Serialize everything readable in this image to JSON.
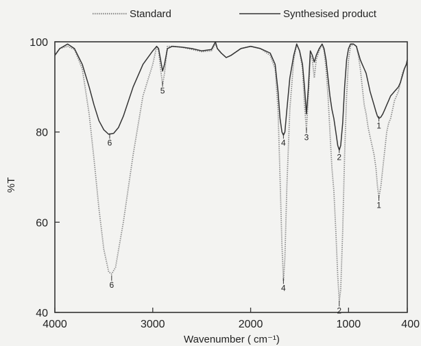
{
  "chart_data": {
    "type": "line",
    "xlabel": "Wavenumber ( cm⁻¹)",
    "ylabel": "%T",
    "xlim": [
      4000,
      400
    ],
    "ylim": [
      40,
      100
    ],
    "xticks": [
      "4000",
      "3000",
      "2000",
      "1000",
      "400"
    ],
    "xtick_values": [
      4000,
      3000,
      2000,
      1000,
      400
    ],
    "yticks": [
      "40",
      "60",
      "80",
      "100"
    ],
    "ytick_values": [
      40,
      60,
      80,
      100
    ],
    "grid": false,
    "legend": "top",
    "series": [
      {
        "name": "Standard",
        "color": "#8c8c8c",
        "style": "dotted",
        "points": [
          [
            4000,
            97
          ],
          [
            3950,
            98.5
          ],
          [
            3870,
            99
          ],
          [
            3800,
            98.3
          ],
          [
            3720,
            94
          ],
          [
            3650,
            84
          ],
          [
            3600,
            74
          ],
          [
            3550,
            63
          ],
          [
            3500,
            54
          ],
          [
            3450,
            49
          ],
          [
            3420,
            48.5
          ],
          [
            3380,
            50
          ],
          [
            3300,
            60
          ],
          [
            3200,
            75
          ],
          [
            3100,
            88
          ],
          [
            3000,
            95
          ],
          [
            2960,
            99
          ],
          [
            2940,
            98
          ],
          [
            2920,
            94
          ],
          [
            2900,
            90.5
          ],
          [
            2880,
            93
          ],
          [
            2850,
            99
          ],
          [
            2800,
            99
          ],
          [
            2700,
            98.8
          ],
          [
            2600,
            98.3
          ],
          [
            2500,
            97.8
          ],
          [
            2400,
            98
          ],
          [
            2360,
            99.5
          ],
          [
            2340,
            98.5
          ],
          [
            2300,
            97.5
          ],
          [
            2250,
            96.5
          ],
          [
            2200,
            97
          ],
          [
            2100,
            98.5
          ],
          [
            2000,
            99
          ],
          [
            1900,
            98.5
          ],
          [
            1800,
            97
          ],
          [
            1750,
            94
          ],
          [
            1720,
            85
          ],
          [
            1700,
            70
          ],
          [
            1680,
            55
          ],
          [
            1665,
            47
          ],
          [
            1650,
            52
          ],
          [
            1630,
            68
          ],
          [
            1600,
            85
          ],
          [
            1560,
            96
          ],
          [
            1530,
            99.5
          ],
          [
            1500,
            98
          ],
          [
            1470,
            94
          ],
          [
            1450,
            86
          ],
          [
            1430,
            80.5
          ],
          [
            1410,
            88
          ],
          [
            1390,
            97
          ],
          [
            1370,
            96
          ],
          [
            1350,
            92
          ],
          [
            1330,
            96
          ],
          [
            1300,
            98
          ],
          [
            1270,
            99.5
          ],
          [
            1250,
            98
          ],
          [
            1230,
            94
          ],
          [
            1210,
            88
          ],
          [
            1190,
            80
          ],
          [
            1170,
            72
          ],
          [
            1150,
            67
          ],
          [
            1130,
            58
          ],
          [
            1110,
            48
          ],
          [
            1095,
            42.5
          ],
          [
            1080,
            45
          ],
          [
            1060,
            58
          ],
          [
            1040,
            75
          ],
          [
            1020,
            88
          ],
          [
            1000,
            96
          ],
          [
            980,
            99
          ],
          [
            950,
            99.5
          ],
          [
            920,
            99
          ],
          [
            900,
            97
          ],
          [
            880,
            94
          ],
          [
            860,
            90
          ],
          [
            840,
            86
          ],
          [
            820,
            84
          ],
          [
            800,
            81
          ],
          [
            780,
            79
          ],
          [
            760,
            77
          ],
          [
            740,
            75
          ],
          [
            720,
            72
          ],
          [
            705,
            68
          ],
          [
            690,
            65.5
          ],
          [
            670,
            68
          ],
          [
            650,
            72
          ],
          [
            630,
            76
          ],
          [
            610,
            80
          ],
          [
            590,
            82
          ],
          [
            570,
            83
          ],
          [
            550,
            85
          ],
          [
            530,
            87
          ],
          [
            510,
            88
          ],
          [
            490,
            89
          ],
          [
            470,
            91
          ],
          [
            450,
            93
          ],
          [
            430,
            94
          ],
          [
            410,
            95
          ],
          [
            400,
            96
          ]
        ]
      },
      {
        "name": "Synthesised product",
        "color": "#333333",
        "style": "solid",
        "points": [
          [
            4000,
            97
          ],
          [
            3950,
            98.5
          ],
          [
            3870,
            99.5
          ],
          [
            3800,
            98.5
          ],
          [
            3720,
            95
          ],
          [
            3650,
            90
          ],
          [
            3600,
            86
          ],
          [
            3550,
            82.5
          ],
          [
            3500,
            80.5
          ],
          [
            3450,
            79.5
          ],
          [
            3400,
            79.7
          ],
          [
            3350,
            81
          ],
          [
            3300,
            83.5
          ],
          [
            3200,
            90
          ],
          [
            3100,
            95
          ],
          [
            3000,
            98
          ],
          [
            2960,
            99
          ],
          [
            2940,
            98.5
          ],
          [
            2920,
            96
          ],
          [
            2900,
            93.5
          ],
          [
            2880,
            95
          ],
          [
            2850,
            98.5
          ],
          [
            2800,
            99
          ],
          [
            2700,
            98.8
          ],
          [
            2600,
            98.5
          ],
          [
            2500,
            98
          ],
          [
            2400,
            98.3
          ],
          [
            2360,
            100
          ],
          [
            2340,
            98.5
          ],
          [
            2300,
            97.5
          ],
          [
            2250,
            96.5
          ],
          [
            2200,
            97
          ],
          [
            2100,
            98.5
          ],
          [
            2000,
            99
          ],
          [
            1900,
            98.5
          ],
          [
            1800,
            97.5
          ],
          [
            1750,
            95
          ],
          [
            1720,
            89
          ],
          [
            1700,
            83
          ],
          [
            1680,
            80
          ],
          [
            1665,
            79.3
          ],
          [
            1650,
            80
          ],
          [
            1630,
            85
          ],
          [
            1600,
            92
          ],
          [
            1560,
            97
          ],
          [
            1530,
            99.5
          ],
          [
            1500,
            98
          ],
          [
            1470,
            95
          ],
          [
            1450,
            90
          ],
          [
            1430,
            84
          ],
          [
            1410,
            90
          ],
          [
            1390,
            98
          ],
          [
            1370,
            97
          ],
          [
            1350,
            95.5
          ],
          [
            1330,
            97
          ],
          [
            1300,
            98.5
          ],
          [
            1270,
            99.5
          ],
          [
            1250,
            98.5
          ],
          [
            1230,
            96
          ],
          [
            1210,
            92
          ],
          [
            1190,
            88
          ],
          [
            1170,
            85
          ],
          [
            1150,
            83
          ],
          [
            1130,
            80
          ],
          [
            1110,
            77
          ],
          [
            1095,
            76
          ],
          [
            1080,
            77
          ],
          [
            1060,
            82
          ],
          [
            1040,
            90
          ],
          [
            1020,
            96
          ],
          [
            1000,
            98.5
          ],
          [
            980,
            99.5
          ],
          [
            950,
            99.5
          ],
          [
            920,
            99
          ],
          [
            900,
            97.5
          ],
          [
            880,
            96
          ],
          [
            860,
            95
          ],
          [
            840,
            94
          ],
          [
            820,
            93
          ],
          [
            800,
            91
          ],
          [
            780,
            89
          ],
          [
            760,
            87.5
          ],
          [
            740,
            86
          ],
          [
            720,
            84.5
          ],
          [
            705,
            83.5
          ],
          [
            690,
            83
          ],
          [
            670,
            83.3
          ],
          [
            650,
            84
          ],
          [
            630,
            85
          ],
          [
            610,
            86
          ],
          [
            590,
            87
          ],
          [
            570,
            88
          ],
          [
            550,
            88.5
          ],
          [
            530,
            89
          ],
          [
            510,
            89.5
          ],
          [
            490,
            90
          ],
          [
            470,
            91
          ],
          [
            450,
            92.5
          ],
          [
            430,
            94
          ],
          [
            410,
            95
          ],
          [
            400,
            96
          ]
        ]
      }
    ],
    "annotations": [
      {
        "text": "6",
        "x": 3440,
        "y": 77
      },
      {
        "text": "6",
        "x": 3420,
        "y": 45.5
      },
      {
        "text": "5",
        "x": 2900,
        "y": 88.5
      },
      {
        "text": "4",
        "x": 1665,
        "y": 77
      },
      {
        "text": "4",
        "x": 1665,
        "y": 44.8
      },
      {
        "text": "3",
        "x": 1430,
        "y": 78.2
      },
      {
        "text": "2",
        "x": 1095,
        "y": 73.8
      },
      {
        "text": "2",
        "x": 1095,
        "y": 39.8
      },
      {
        "text": "1",
        "x": 690,
        "y": 80.8
      },
      {
        "text": "1",
        "x": 690,
        "y": 63.2
      }
    ]
  }
}
